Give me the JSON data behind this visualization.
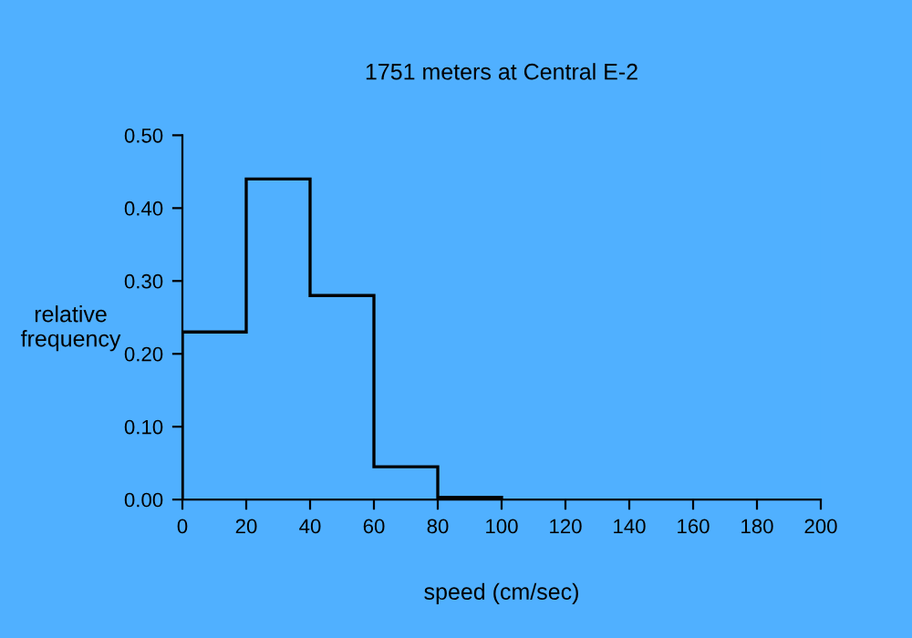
{
  "chart_data": {
    "type": "histogram",
    "title": "1751 meters at Central E-2",
    "xlabel": "speed (cm/sec)",
    "ylabel": "relative\nfrequency",
    "bins": [
      0,
      20,
      40,
      60,
      80,
      100
    ],
    "values": [
      0.23,
      0.44,
      0.28,
      0.045,
      0.003
    ],
    "color": "#000000",
    "xlim": [
      0,
      200
    ],
    "xticks": [
      0,
      20,
      40,
      60,
      80,
      100,
      120,
      140,
      160,
      180,
      200
    ],
    "ylim": [
      0,
      0.5
    ],
    "yticks": [
      {
        "value": 0,
        "label": "0.00"
      },
      {
        "value": 0.1,
        "label": "0.10"
      },
      {
        "value": 0.2,
        "label": "0.20"
      },
      {
        "value": 0.3,
        "label": "0.30"
      },
      {
        "value": 0.4,
        "label": "0.40"
      },
      {
        "value": 0.5,
        "label": "0.50"
      }
    ],
    "grid": false
  }
}
